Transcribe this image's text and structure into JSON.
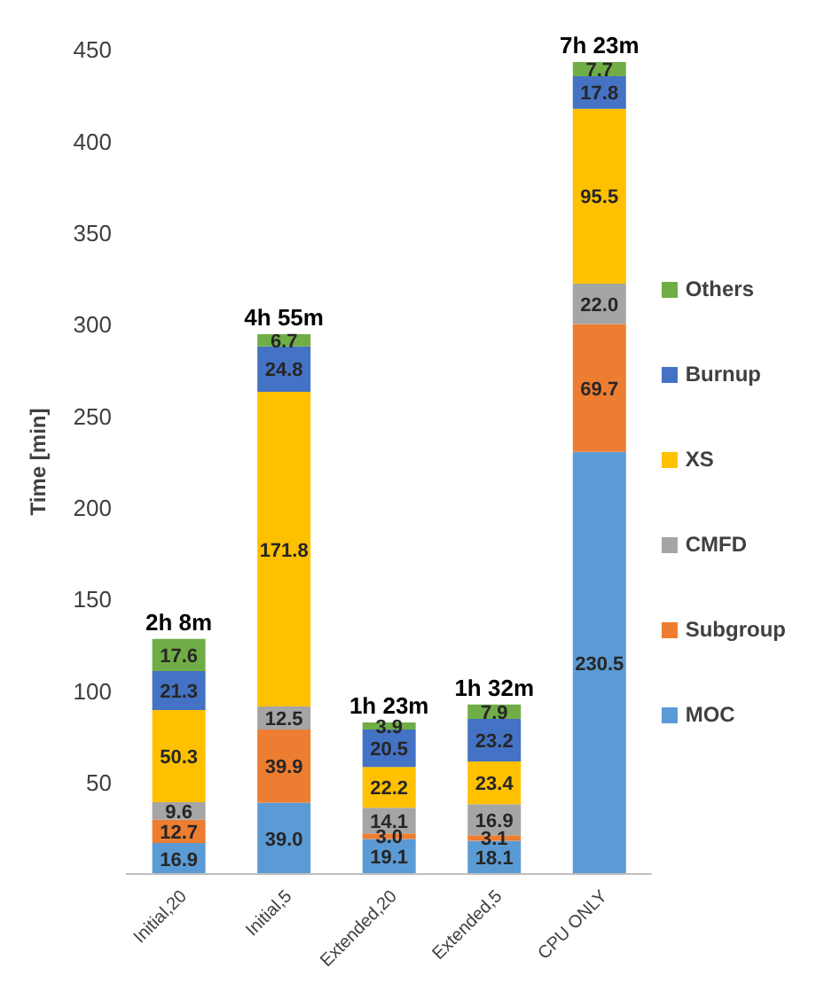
{
  "chart_data": {
    "type": "bar",
    "stacked": true,
    "ylabel": "Time [min]",
    "categories": [
      "Initial,20",
      "Initial,5",
      "Extended,20",
      "Extended,5",
      "CPU ONLY"
    ],
    "series": [
      {
        "name": "MOC",
        "color": "#5b9bd5",
        "values": [
          16.9,
          39.0,
          19.1,
          18.1,
          230.5
        ],
        "value_labels": [
          "16.9",
          "39.0",
          "19.1",
          "18.1",
          "230.5"
        ]
      },
      {
        "name": "Subgroup",
        "color": "#ed7d31",
        "values": [
          12.7,
          39.9,
          3.0,
          3.1,
          69.7
        ],
        "value_labels": [
          "12.7",
          "39.9",
          "3.0",
          "3.1",
          "69.7"
        ]
      },
      {
        "name": "CMFD",
        "color": "#a5a5a5",
        "values": [
          9.6,
          12.5,
          14.1,
          16.9,
          22.0
        ],
        "value_labels": [
          "9.6",
          "12.5",
          "14.1",
          "16.9",
          "22.0"
        ]
      },
      {
        "name": "XS",
        "color": "#ffc000",
        "values": [
          50.3,
          171.8,
          22.2,
          23.4,
          95.5
        ],
        "value_labels": [
          "50.3",
          "171.8",
          "22.2",
          "23.4",
          "95.5"
        ]
      },
      {
        "name": "Burnup",
        "color": "#4472c4",
        "values": [
          21.3,
          24.8,
          20.5,
          23.2,
          17.8
        ],
        "value_labels": [
          "21.3",
          "24.8",
          "20.5",
          "23.2",
          "17.8"
        ]
      },
      {
        "name": "Others",
        "color": "#70ad47",
        "values": [
          17.6,
          6.7,
          3.9,
          7.9,
          7.7
        ],
        "value_labels": [
          "17.6",
          "6.7",
          "3.9",
          "7.9",
          "7.7"
        ]
      }
    ],
    "totals": [
      "2h 8m",
      "4h 55m",
      "1h 23m",
      "1h 32m",
      "7h 23m"
    ],
    "ylim": [
      0,
      450
    ],
    "yticks": [
      50,
      100,
      150,
      200,
      250,
      300,
      350,
      400,
      450
    ],
    "legend": "right"
  }
}
